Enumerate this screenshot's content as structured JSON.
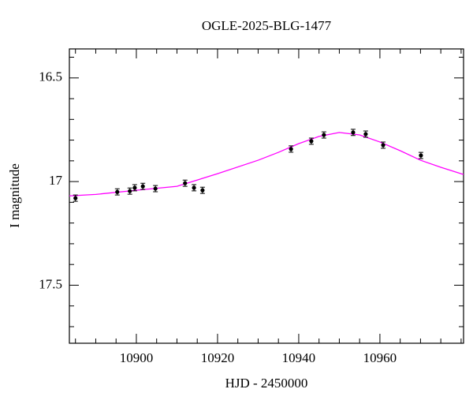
{
  "chart_data": {
    "type": "scatter",
    "title": "OGLE-2025-BLG-1477",
    "x_label": "HJD - 2450000",
    "y_label": "I magnitude",
    "x": [
      10885.0,
      10895.3,
      10898.4,
      10899.6,
      10901.6,
      10904.7,
      10912.0,
      10914.2,
      10916.3,
      10938.1,
      10943.1,
      10946.2,
      10953.4,
      10956.5,
      10960.8,
      10970.1
    ],
    "values": [
      17.08,
      17.05,
      17.046,
      17.03,
      17.023,
      17.034,
      17.008,
      17.03,
      17.042,
      16.843,
      16.805,
      16.775,
      16.763,
      16.771,
      16.824,
      16.874
    ],
    "errors": [
      0.015,
      0.015,
      0.015,
      0.015,
      0.015,
      0.015,
      0.015,
      0.015,
      0.015,
      0.015,
      0.015,
      0.015,
      0.015,
      0.015,
      0.015,
      0.015
    ],
    "color": "#000000",
    "model": {
      "color": "#ff00ff",
      "x": [
        10883.5,
        10890,
        10900,
        10910,
        10920,
        10930,
        10935,
        10940,
        10945,
        10950,
        10955,
        10960,
        10965,
        10970,
        10975,
        10980.6
      ],
      "values": [
        17.069,
        17.062,
        17.042,
        17.023,
        16.962,
        16.897,
        16.859,
        16.817,
        16.782,
        16.763,
        16.775,
        16.809,
        16.851,
        16.897,
        16.931,
        16.966
      ]
    },
    "xlim": [
      10883.5,
      10980.6
    ],
    "ylim": [
      17.78,
      16.36
    ],
    "xticks": [
      10900,
      10920,
      10940,
      10960
    ],
    "yticks": [
      16.5,
      17,
      17.5
    ],
    "xminorticks": [
      10885,
      10890,
      10895,
      10905,
      10910,
      10915,
      10925,
      10930,
      10935,
      10945,
      10950,
      10955,
      10965,
      10970,
      10975,
      10980
    ],
    "yminorticks": [
      16.4,
      16.6,
      16.7,
      16.8,
      16.9,
      17.1,
      17.2,
      17.3,
      17.4,
      17.6,
      17.7
    ]
  }
}
